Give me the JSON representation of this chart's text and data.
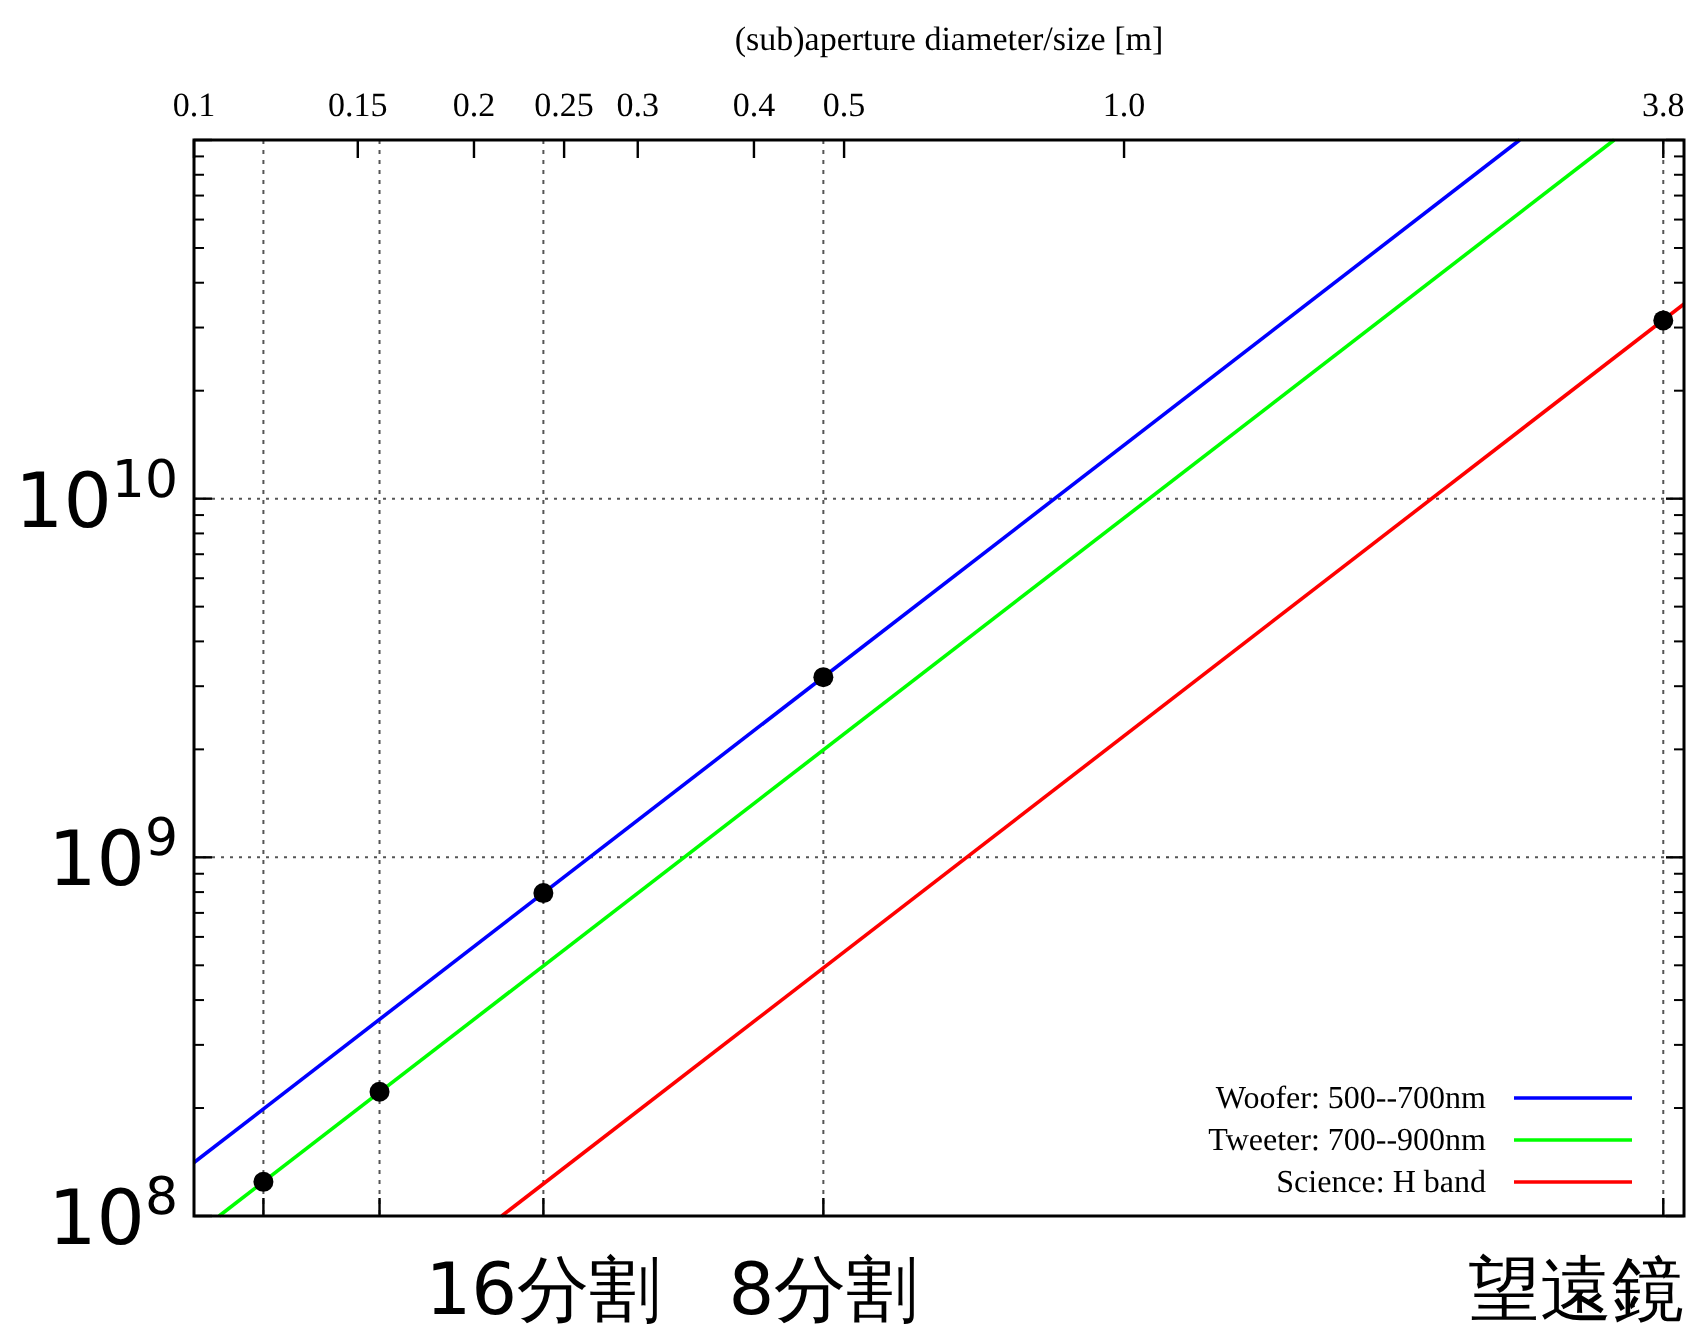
{
  "chart_data": {
    "type": "line",
    "xlabel": "(sub)aperture diameter/size [m]",
    "log": "xy",
    "xlim": [
      0.1,
      4
    ],
    "ylim": [
      100000000.0,
      100000000000.0
    ],
    "xticks": [
      0.1,
      0.15,
      0.2,
      0.25,
      0.3,
      0.4,
      0.5,
      {
        "value": 1,
        "label": "1.0"
      },
      3.8
    ],
    "yticks": [
      {
        "value": 100000000.0,
        "label": "10$^{8}$"
      },
      {
        "value": 1000000000.0,
        "label": "10$^{9}$"
      },
      {
        "value": 10000000000.0,
        "label": "10$^{10}$"
      },
      {
        "value": 100000000000.0,
        "label": null
      }
    ],
    "grid": "y",
    "legend": "bottom right",
    "marker": "none",
    "line_style": "solid",
    "series": [
      {
        "name": "Woofer: 500--700nm",
        "color": "#0000ff",
        "x": [
          0.1,
          2.663
        ],
        "values": [
          141000000.0,
          100000000000.0
        ]
      },
      {
        "name": "Tweeter: 700--900nm",
        "color": "#00ff00",
        "x": [
          0.1064,
          3.365
        ],
        "values": [
          100000000.0,
          100000000000.0
        ]
      },
      {
        "name": "Science: H band",
        "color": "#ff0000",
        "x": [
          0.2142,
          4
        ],
        "values": [
          100000000.0,
          34900000000.0
        ]
      },
      {
        "type": "scatter",
        "color": "#000000",
        "marker": "circle",
        "x": [
          0.11875,
          0.1583,
          0.2375,
          0.475,
          3.8
        ],
        "values": [
          124500000.0,
          222000000.0,
          795000000.0,
          3180000000.0,
          31400000000.0
        ]
      }
    ],
    "ref_lines": [
      {
        "axis": "x",
        "value": 0.11875,
        "line_style": "dotted"
      },
      {
        "axis": "x",
        "value": 0.1583,
        "line_style": "dotted"
      },
      {
        "axis": "x",
        "value": 0.2375,
        "line_style": "dotted"
      },
      {
        "axis": "x",
        "value": 0.475,
        "line_style": "dotted"
      },
      {
        "axis": "x",
        "value": 3.8,
        "line_style": "dotted"
      }
    ],
    "annotations": [
      {
        "text": "16分割",
        "x": 0.2375
      },
      {
        "text": "8分割",
        "x": 0.475
      },
      "望遠鏡"
    ]
  }
}
